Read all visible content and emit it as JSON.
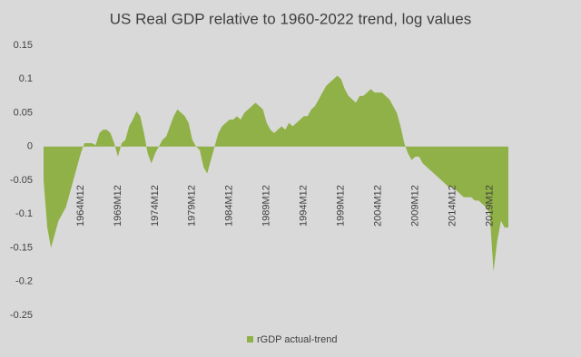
{
  "chart_data": {
    "type": "area",
    "title": "US Real GDP relative to 1960-2022 trend, log values",
    "categories": [
      null,
      null,
      null,
      null,
      null,
      null,
      null,
      null,
      null,
      null,
      "1964M12",
      null,
      null,
      null,
      null,
      null,
      null,
      null,
      null,
      null,
      "1969M12",
      null,
      null,
      null,
      null,
      null,
      null,
      null,
      null,
      null,
      "1974M12",
      null,
      null,
      null,
      null,
      null,
      null,
      null,
      null,
      null,
      "1979M12",
      null,
      null,
      null,
      null,
      null,
      null,
      null,
      null,
      null,
      "1984M12",
      null,
      null,
      null,
      null,
      null,
      null,
      null,
      null,
      null,
      "1989M12",
      null,
      null,
      null,
      null,
      null,
      null,
      null,
      null,
      null,
      "1994M12",
      null,
      null,
      null,
      null,
      null,
      null,
      null,
      null,
      null,
      "1999M12",
      null,
      null,
      null,
      null,
      null,
      null,
      null,
      null,
      null,
      "2004M12",
      null,
      null,
      null,
      null,
      null,
      null,
      null,
      null,
      null,
      "2009M12",
      null,
      null,
      null,
      null,
      null,
      null,
      null,
      null,
      null,
      "2014M12",
      null,
      null,
      null,
      null,
      null,
      null,
      null,
      null,
      null,
      "2019M12",
      null,
      null,
      null,
      null,
      null
    ],
    "series": [
      {
        "name": "rGDP actual-trend",
        "color": "#8fb147",
        "values": [
          -0.05,
          -0.12,
          -0.15,
          -0.13,
          -0.11,
          -0.1,
          -0.09,
          -0.07,
          -0.05,
          -0.03,
          -0.01,
          0.005,
          0.005,
          0.005,
          0.002,
          0.02,
          0.025,
          0.025,
          0.02,
          0.005,
          -0.015,
          0.005,
          0.01,
          0.03,
          0.04,
          0.052,
          0.045,
          0.02,
          -0.01,
          -0.025,
          -0.01,
          0.0,
          0.01,
          0.015,
          0.03,
          0.045,
          0.055,
          0.05,
          0.045,
          0.035,
          0.01,
          0.0,
          -0.005,
          -0.03,
          -0.04,
          -0.02,
          0.0,
          0.02,
          0.03,
          0.035,
          0.04,
          0.04,
          0.045,
          0.04,
          0.05,
          0.055,
          0.06,
          0.065,
          0.06,
          0.055,
          0.035,
          0.025,
          0.02,
          0.025,
          0.03,
          0.025,
          0.035,
          0.03,
          0.035,
          0.04,
          0.045,
          0.045,
          0.055,
          0.06,
          0.07,
          0.08,
          0.09,
          0.095,
          0.1,
          0.105,
          0.1,
          0.085,
          0.075,
          0.07,
          0.065,
          0.075,
          0.075,
          0.08,
          0.085,
          0.08,
          0.08,
          0.08,
          0.075,
          0.07,
          0.06,
          0.05,
          0.03,
          0.005,
          -0.01,
          -0.02,
          -0.015,
          -0.015,
          -0.025,
          -0.03,
          -0.035,
          -0.04,
          -0.045,
          -0.05,
          -0.055,
          -0.06,
          -0.06,
          -0.065,
          -0.07,
          -0.075,
          -0.075,
          -0.075,
          -0.08,
          -0.08,
          -0.085,
          -0.09,
          -0.1,
          -0.185,
          -0.14,
          -0.11,
          -0.12,
          -0.12
        ]
      }
    ],
    "ylim": [
      -0.25,
      0.15
    ],
    "yticks": [
      0.15,
      0.1,
      0.05,
      0,
      -0.05,
      -0.1,
      -0.15,
      -0.2,
      -0.25
    ]
  }
}
